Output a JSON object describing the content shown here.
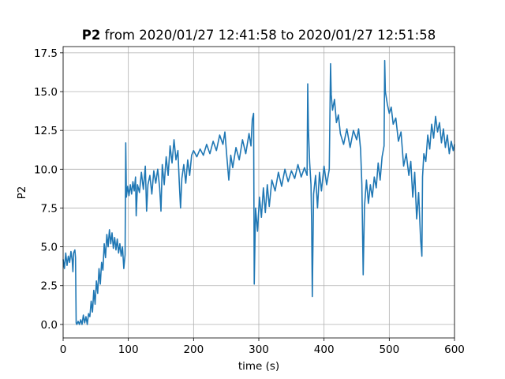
{
  "chart_data": {
    "type": "line",
    "title_bold": "P2",
    "title": "from 2020/01/27 12:41:58 to 2020/01/27 12:51:58",
    "xlabel": "time (s)",
    "ylabel": "P2",
    "xlim": [
      0,
      600
    ],
    "ylim": [
      -0.87,
      17.9
    ],
    "xticks": [
      0,
      100,
      200,
      300,
      400,
      500,
      600
    ],
    "yticks": [
      {
        "value": 0,
        "label": "0.0"
      },
      2.5,
      {
        "value": 5,
        "label": "5.0"
      },
      7.5,
      {
        "value": 10,
        "label": "10.0"
      },
      12.5,
      {
        "value": 15,
        "label": "15.0"
      },
      17.5
    ],
    "grid": true,
    "series": [
      {
        "color": "#1f77b4",
        "x": [
          0,
          2,
          4,
          6,
          8,
          10,
          12,
          14,
          15,
          16,
          18,
          19,
          20,
          21,
          23,
          25,
          27,
          29,
          31,
          33,
          35,
          37,
          39,
          41,
          43,
          45,
          47,
          49,
          51,
          53,
          55,
          57,
          59,
          61,
          63,
          65,
          67,
          69,
          71,
          73,
          75,
          77,
          79,
          81,
          83,
          85,
          87,
          89,
          91,
          93,
          95,
          96,
          97,
          99,
          101,
          103,
          105,
          107,
          109,
          111,
          112,
          114,
          117,
          120,
          123,
          126,
          128,
          130,
          133,
          136,
          139,
          142,
          145,
          148,
          150,
          152,
          155,
          158,
          161,
          164,
          167,
          170,
          173,
          176,
          178,
          180,
          182,
          185,
          188,
          191,
          194,
          197,
          200,
          205,
          210,
          215,
          220,
          225,
          230,
          235,
          240,
          245,
          248,
          251,
          254,
          257,
          260,
          265,
          270,
          275,
          280,
          285,
          288,
          290,
          292,
          293,
          295,
          298,
          301,
          304,
          307,
          310,
          313,
          316,
          320,
          325,
          330,
          335,
          340,
          345,
          350,
          355,
          360,
          365,
          370,
          374,
          375,
          376,
          378,
          380,
          381,
          382,
          384,
          387,
          390,
          393,
          396,
          400,
          404,
          408,
          410,
          411,
          413,
          416,
          419,
          422,
          425,
          430,
          435,
          440,
          445,
          450,
          453,
          456,
          458,
          460,
          462,
          465,
          468,
          471,
          474,
          477,
          480,
          483,
          486,
          489,
          492,
          493,
          494,
          497,
          500,
          503,
          506,
          510,
          514,
          518,
          522,
          526,
          530,
          533,
          536,
          539,
          542,
          545,
          548,
          550,
          551,
          553,
          556,
          559,
          562,
          565,
          568,
          571,
          574,
          577,
          580,
          583,
          586,
          589,
          592,
          595,
          598,
          600
        ],
        "values": [
          4.2,
          3.6,
          4.6,
          3.8,
          4.4,
          4.0,
          4.7,
          4.1,
          3.4,
          4.6,
          4.8,
          4.3,
          0.1,
          0.0,
          0.2,
          0.0,
          0.3,
          0.0,
          0.6,
          0.1,
          0.5,
          0.0,
          0.7,
          0.5,
          1.5,
          0.8,
          2.2,
          1.3,
          2.8,
          2.0,
          3.6,
          2.6,
          4.0,
          3.5,
          5.2,
          4.3,
          5.8,
          5.0,
          6.1,
          5.2,
          5.9,
          4.9,
          5.6,
          4.8,
          5.5,
          4.6,
          5.2,
          4.4,
          5.0,
          3.6,
          4.5,
          11.7,
          8.2,
          8.9,
          8.3,
          9.0,
          8.4,
          9.2,
          8.6,
          9.5,
          7.0,
          9.0,
          8.5,
          9.8,
          8.7,
          10.2,
          7.3,
          9.0,
          9.6,
          8.4,
          9.9,
          9.1,
          10.0,
          8.8,
          7.3,
          10.3,
          9.0,
          10.8,
          9.6,
          11.5,
          10.4,
          11.9,
          10.6,
          11.2,
          9.2,
          7.5,
          9.4,
          10.3,
          9.1,
          10.6,
          9.6,
          10.9,
          11.2,
          10.8,
          11.3,
          10.9,
          11.6,
          11.0,
          11.8,
          11.2,
          12.2,
          11.6,
          12.4,
          10.8,
          9.3,
          10.9,
          10.1,
          11.4,
          10.6,
          11.9,
          11.0,
          12.3,
          11.5,
          13.2,
          13.6,
          2.6,
          7.5,
          6.0,
          8.2,
          6.9,
          8.8,
          7.2,
          9.0,
          7.6,
          9.3,
          8.6,
          9.8,
          8.9,
          10.0,
          9.2,
          9.9,
          9.4,
          10.3,
          9.5,
          10.1,
          9.6,
          15.5,
          12.6,
          10.4,
          9.0,
          6.5,
          1.8,
          8.4,
          9.6,
          7.5,
          9.8,
          8.6,
          10.2,
          9.0,
          10.0,
          16.8,
          14.8,
          13.8,
          14.5,
          13.0,
          13.5,
          12.3,
          11.6,
          12.6,
          11.4,
          12.5,
          11.9,
          12.6,
          11.3,
          9.0,
          3.2,
          7.6,
          9.3,
          7.8,
          9.0,
          8.2,
          9.5,
          8.8,
          10.4,
          9.3,
          10.8,
          11.5,
          17.0,
          15.0,
          14.2,
          13.6,
          14.0,
          12.9,
          13.3,
          11.8,
          12.4,
          10.2,
          11.0,
          9.6,
          10.5,
          8.2,
          9.8,
          6.8,
          8.5,
          5.5,
          4.4,
          9.5,
          11.0,
          10.5,
          12.2,
          11.3,
          12.9,
          12.0,
          13.4,
          12.4,
          13.0,
          11.7,
          12.6,
          11.4,
          12.2,
          11.0,
          11.8,
          11.2,
          11.6
        ]
      }
    ]
  }
}
